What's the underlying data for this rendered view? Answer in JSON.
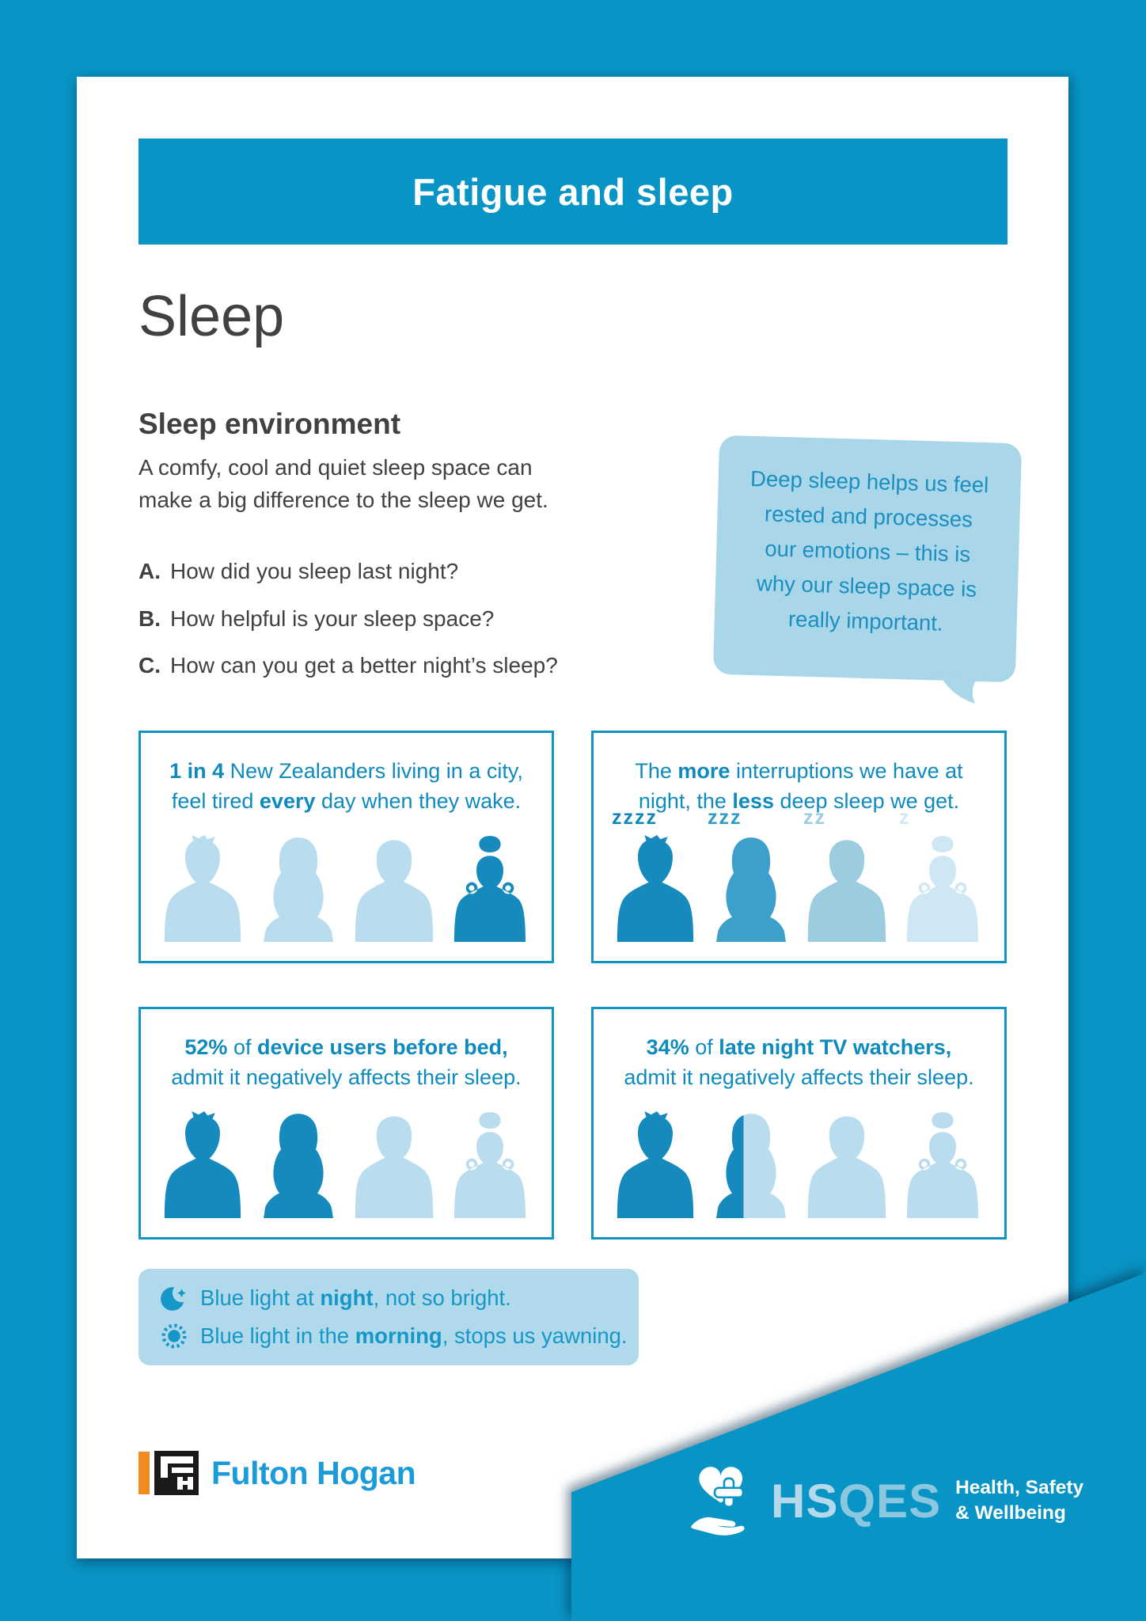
{
  "colors": {
    "teal": "#0894c4",
    "stat_text": "#0e8abd",
    "stat_border": "#1195c5",
    "silhouette_dark": "#168abd",
    "silhouette_medium": "#3ca0cb",
    "silhouette_light3": "#9cccdf",
    "silhouette_light": "#b9ddee",
    "silhouette_faint": "#cfe7f3",
    "bubble_bg": "#a9d6e9",
    "bubble_text": "#1b8ec2",
    "bluelight_bg": "#b0d9eb",
    "body_text": "#414042",
    "fh_blue": "#1b9cd8",
    "fh_orange": "#f18a21"
  },
  "header": {
    "title": "Fatigue and sleep"
  },
  "heading": "Sleep",
  "section": {
    "title": "Sleep environment",
    "body": "A comfy, cool and quiet sleep space can\nmake a big difference to the sleep we get.",
    "questions": [
      {
        "letter": "A.",
        "text": "How did you sleep last night?"
      },
      {
        "letter": "B.",
        "text": "How helpful is your sleep space?"
      },
      {
        "letter": "C.",
        "text": "How can you get a better night’s sleep?"
      }
    ]
  },
  "speech_bubble": {
    "text": "Deep sleep helps us feel\nrested and processes\nour emotions – this is\nwhy our sleep space is\nreally important."
  },
  "stat_boxes": [
    {
      "heading": [
        {
          "t": "1 in 4",
          "b": true
        },
        {
          "t": " New Zealanders living in a city,\nfeel tired "
        },
        {
          "t": "every",
          "b": true
        },
        {
          "t": " day when they wake."
        }
      ],
      "people": [
        {
          "type": "man1",
          "color": "#b9ddee"
        },
        {
          "type": "woman1",
          "color": "#b9ddee"
        },
        {
          "type": "man2",
          "color": "#b9ddee"
        },
        {
          "type": "woman2",
          "color": "#168abd"
        }
      ]
    },
    {
      "heading": [
        {
          "t": "The "
        },
        {
          "t": "more",
          "b": true
        },
        {
          "t": " interruptions we have at\nnight, the "
        },
        {
          "t": "less",
          "b": true
        },
        {
          "t": " deep sleep we get."
        }
      ],
      "people": [
        {
          "type": "man1",
          "color": "#168abd",
          "label": {
            "text": "zzzz",
            "color": "#0e86ba"
          }
        },
        {
          "type": "woman1",
          "color": "#3ca0cb",
          "label": {
            "text": "zzz",
            "color": "#2d9ac8"
          }
        },
        {
          "type": "man2",
          "color": "#9cccdf",
          "label": {
            "text": "zz",
            "color": "#9cccdf"
          }
        },
        {
          "type": "woman2",
          "color": "#cfe7f3",
          "label": {
            "text": "z",
            "color": "#cfe7f3"
          }
        }
      ]
    },
    {
      "heading": [
        {
          "t": "52%",
          "b": true
        },
        {
          "t": " of "
        },
        {
          "t": "device users before bed,",
          "b": true
        },
        {
          "t": "\nadmit it negatively affects their sleep."
        }
      ],
      "people": [
        {
          "type": "man1",
          "color": "#168abd"
        },
        {
          "type": "woman1",
          "color": "#168abd"
        },
        {
          "type": "man2",
          "color": "#b9ddee"
        },
        {
          "type": "woman2",
          "color": "#b9ddee"
        }
      ]
    },
    {
      "heading": [
        {
          "t": "34%",
          "b": true
        },
        {
          "t": " of "
        },
        {
          "t": "late night TV watchers,",
          "b": true
        },
        {
          "t": "\nadmit it negatively affects their sleep."
        }
      ],
      "people": [
        {
          "type": "man1",
          "color": "#168abd"
        },
        {
          "type": "woman1",
          "color": "#b9ddee",
          "split": {
            "color": "#168abd",
            "pct": 42
          }
        },
        {
          "type": "man2",
          "color": "#b9ddee"
        },
        {
          "type": "woman2",
          "color": "#b9ddee"
        }
      ]
    }
  ],
  "blue_light": {
    "lines": [
      {
        "icon": "moon-icon",
        "segments": [
          {
            "t": "Blue light at "
          },
          {
            "t": "night",
            "b": true
          },
          {
            "t": ", not so bright."
          }
        ]
      },
      {
        "icon": "sun-icon",
        "segments": [
          {
            "t": "Blue light in the "
          },
          {
            "t": "morning",
            "b": true
          },
          {
            "t": ", stops us yawning."
          }
        ]
      }
    ]
  },
  "footer": {
    "fulton_hogan": "Fulton Hogan",
    "hsqes_letters": [
      {
        "ch": "H",
        "tone": "lt"
      },
      {
        "ch": "S",
        "tone": "lt"
      },
      {
        "ch": "Q",
        "tone": "dk"
      },
      {
        "ch": "E",
        "tone": "dk"
      },
      {
        "ch": "S",
        "tone": "dk"
      }
    ],
    "hsqes_tagline": "Health, Safety\n& Wellbeing"
  }
}
